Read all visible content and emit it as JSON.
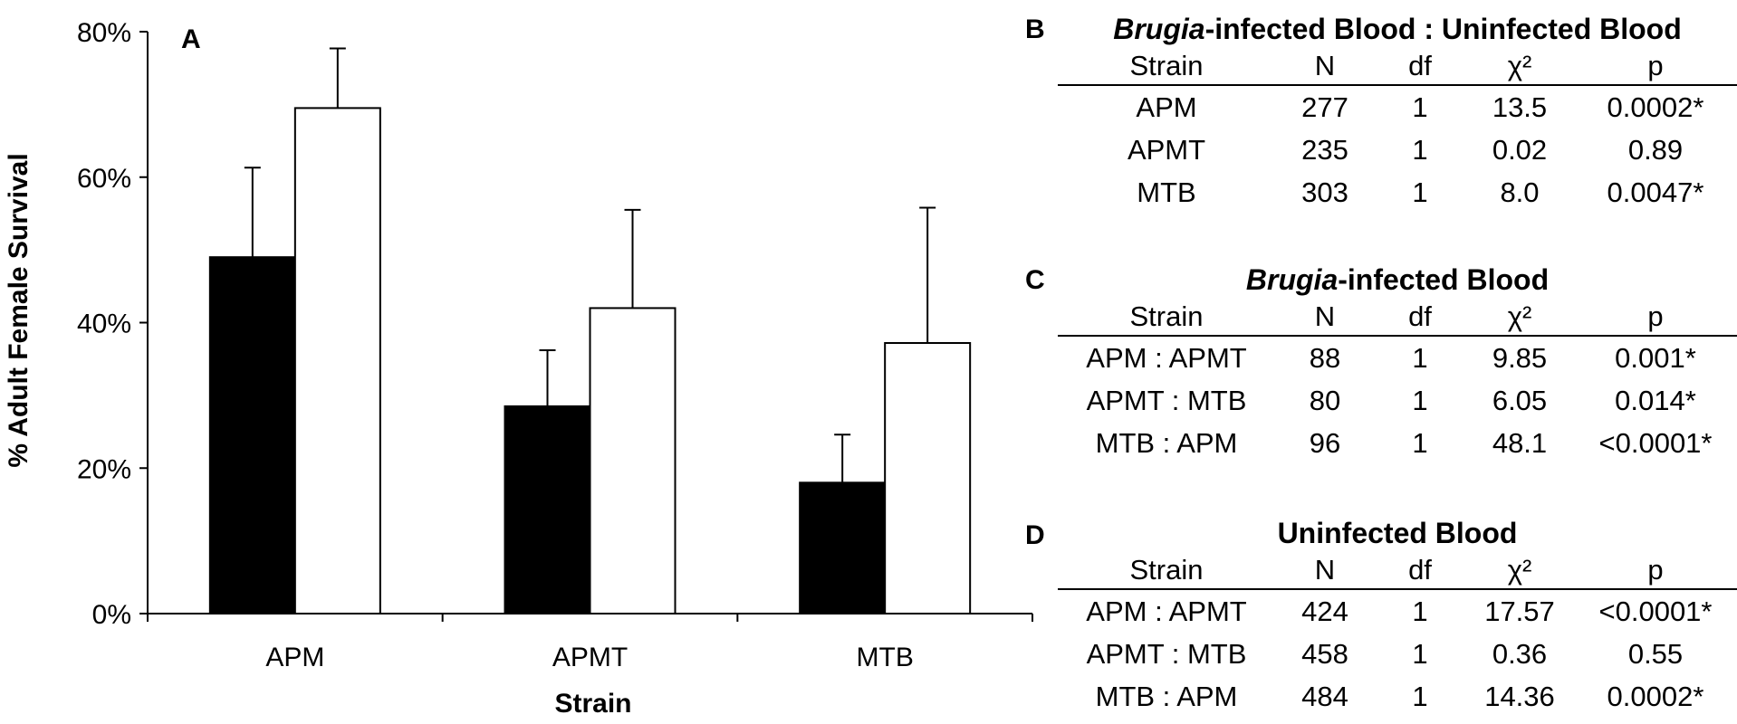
{
  "chart_data": {
    "type": "bar",
    "panel_label": "A",
    "categories": [
      "APM",
      "APMT",
      "MTB"
    ],
    "series": [
      {
        "color": "#000000",
        "values": [
          49,
          28.5,
          18
        ],
        "error_upper": [
          61.3,
          36.2,
          24.6
        ]
      },
      {
        "color": "#ffffff",
        "values": [
          69.5,
          42,
          37.2
        ],
        "error_upper": [
          77.7,
          55.5,
          55.8
        ]
      }
    ],
    "xlabel": "Strain",
    "ylabel": "% Adult Female Survival",
    "ylim": [
      0,
      80
    ],
    "yticks": [
      0,
      20,
      40,
      60,
      80
    ],
    "ytick_labels": [
      "0%",
      "20%",
      "40%",
      "60%",
      "80%"
    ],
    "grid": false
  },
  "tables": [
    {
      "label": "B",
      "title_italic": "Brugia",
      "title_rest": "-infected Blood : Uninfected Blood",
      "headers": [
        "Strain",
        "N",
        "df",
        "χ²",
        "p"
      ],
      "rows": [
        [
          "APM",
          "277",
          "1",
          "13.5",
          "0.0002*"
        ],
        [
          "APMT",
          "235",
          "1",
          "0.02",
          "0.89"
        ],
        [
          "MTB",
          "303",
          "1",
          "8.0",
          "0.0047*"
        ]
      ]
    },
    {
      "label": "C",
      "title_italic": "Brugia",
      "title_rest": "-infected Blood",
      "headers": [
        "Strain",
        "N",
        "df",
        "χ²",
        "p"
      ],
      "rows": [
        [
          "APM : APMT",
          "88",
          "1",
          "9.85",
          "0.001*"
        ],
        [
          "APMT : MTB",
          "80",
          "1",
          "6.05",
          "0.014*"
        ],
        [
          "MTB : APM",
          "96",
          "1",
          "48.1",
          "<0.0001*"
        ]
      ]
    },
    {
      "label": "D",
      "title_italic": "",
      "title_rest": "Uninfected Blood",
      "headers": [
        "Strain",
        "N",
        "df",
        "χ²",
        "p"
      ],
      "rows": [
        [
          "APM : APMT",
          "424",
          "1",
          "17.57",
          "<0.0001*"
        ],
        [
          "APMT : MTB",
          "458",
          "1",
          "0.36",
          "0.55"
        ],
        [
          "MTB : APM",
          "484",
          "1",
          "14.36",
          "0.0002*"
        ]
      ]
    }
  ]
}
